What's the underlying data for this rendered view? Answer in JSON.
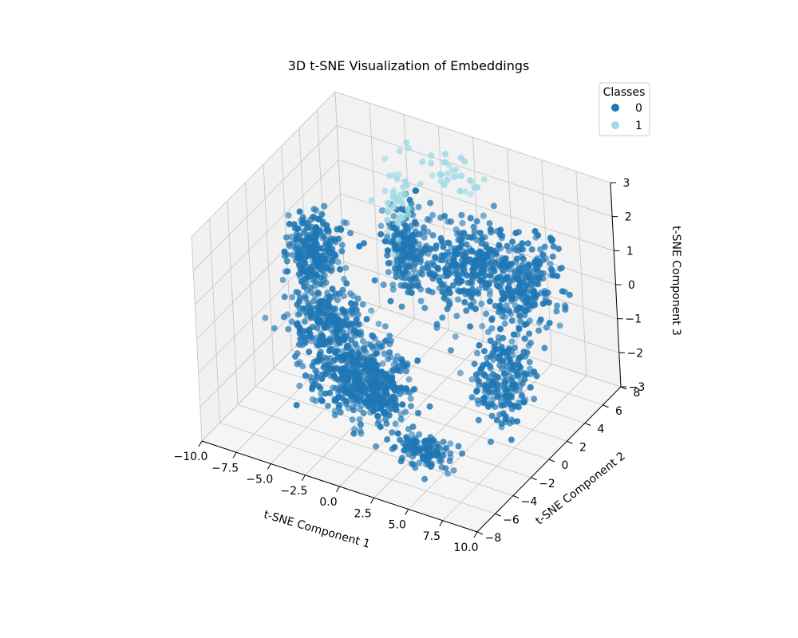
{
  "chart_data": {
    "type": "scatter",
    "subtype": "3d",
    "title": "3D t-SNE Visualization of Embeddings",
    "xlabel": "t-SNE Component 1",
    "ylabel": "t-SNE Component 2",
    "zlabel": "t-SNE Component 3",
    "xlim": [
      -10,
      10
    ],
    "ylim": [
      -8,
      8
    ],
    "zlim": [
      -3,
      3
    ],
    "x_ticks": [
      -10.0,
      -7.5,
      -5.0,
      -2.5,
      0.0,
      2.5,
      5.0,
      7.5,
      10.0
    ],
    "x_tick_labels": [
      "−10.0",
      "−7.5",
      "−5.0",
      "−2.5",
      "0.0",
      "2.5",
      "5.0",
      "7.5",
      "10.0"
    ],
    "y_ticks": [
      -8,
      -6,
      -4,
      -2,
      0,
      2,
      4,
      6,
      8
    ],
    "y_tick_labels": [
      "−8",
      "−6",
      "−4",
      "−2",
      "0",
      "2",
      "4",
      "6",
      "8"
    ],
    "z_ticks": [
      -3,
      -2,
      -1,
      0,
      1,
      2,
      3
    ],
    "z_tick_labels": [
      "−3",
      "−2",
      "−1",
      "0",
      "1",
      "2",
      "3"
    ],
    "grid": true,
    "legend": {
      "title": "Classes",
      "placement": "top-right",
      "entries": [
        {
          "label": "0",
          "color": "#1f77b4"
        },
        {
          "label": "1",
          "color": "#9edae5"
        }
      ]
    },
    "series": [
      {
        "name": "0",
        "color": "#1f77b4",
        "clusters": [
          {
            "center": [
              -8.0,
              2.0,
              0.2
            ],
            "spread": [
              1.4,
              1.2,
              0.8
            ],
            "count": 260
          },
          {
            "center": [
              -5.0,
              -1.0,
              -0.8
            ],
            "spread": [
              2.2,
              1.6,
              0.9
            ],
            "count": 280
          },
          {
            "center": [
              -2.5,
              -3.0,
              -1.5
            ],
            "spread": [
              2.4,
              1.4,
              0.7
            ],
            "count": 240
          },
          {
            "center": [
              0.5,
              -4.0,
              -1.0
            ],
            "spread": [
              1.6,
              1.6,
              1.0
            ],
            "count": 260
          },
          {
            "center": [
              -1.0,
              2.0,
              1.2
            ],
            "spread": [
              1.2,
              1.4,
              1.0
            ],
            "count": 200
          },
          {
            "center": [
              2.5,
              3.0,
              0.8
            ],
            "spread": [
              2.0,
              2.0,
              0.9
            ],
            "count": 280
          },
          {
            "center": [
              6.5,
              3.5,
              0.8
            ],
            "spread": [
              1.6,
              1.8,
              1.0
            ],
            "count": 240
          },
          {
            "center": [
              8.0,
              -1.5,
              -0.5
            ],
            "spread": [
              1.4,
              1.6,
              1.0
            ],
            "count": 220
          },
          {
            "center": [
              4.5,
              -5.0,
              -2.2
            ],
            "spread": [
              1.8,
              0.8,
              0.4
            ],
            "count": 120
          }
        ]
      },
      {
        "name": "1",
        "color": "#9edae5",
        "clusters": [
          {
            "center": [
              -3.8,
              5.0,
              1.5
            ],
            "spread": [
              0.5,
              1.2,
              0.9
            ],
            "count": 45
          },
          {
            "center": [
              -0.5,
              6.5,
              2.2
            ],
            "spread": [
              1.6,
              0.6,
              0.4
            ],
            "count": 30
          }
        ]
      }
    ]
  }
}
